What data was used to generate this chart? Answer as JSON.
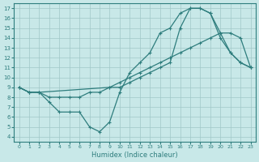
{
  "curve1_x": [
    0,
    1,
    2,
    9,
    10,
    11,
    12,
    13,
    14,
    15,
    16,
    17,
    18,
    19,
    20,
    21,
    22,
    23
  ],
  "curve1_y": [
    9,
    8.5,
    8.5,
    9,
    9.5,
    10,
    10.5,
    11,
    11.5,
    12,
    12.5,
    13,
    13.5,
    14,
    14.5,
    14.5,
    14,
    11
  ],
  "curve2_x": [
    0,
    1,
    2,
    3,
    4,
    5,
    6,
    7,
    8,
    9,
    10,
    11,
    12,
    13,
    14,
    15,
    16,
    17,
    18,
    19,
    20,
    21,
    22,
    23
  ],
  "curve2_y": [
    9,
    8.5,
    8.5,
    7.5,
    6.5,
    6.5,
    6.5,
    5.0,
    4.5,
    5.5,
    8.5,
    10.5,
    11.5,
    12.5,
    14.5,
    15.0,
    16.5,
    17.0,
    17.0,
    16.5,
    14.0,
    12.5,
    11.5,
    11.0
  ],
  "curve3_x": [
    0,
    1,
    2,
    3,
    4,
    5,
    6,
    7,
    8,
    9,
    10,
    11,
    12,
    13,
    14,
    15,
    16,
    17,
    18,
    19,
    20,
    21,
    22,
    23
  ],
  "curve3_y": [
    9,
    8.5,
    8.5,
    8.0,
    8.0,
    8.0,
    8.0,
    8.5,
    8.5,
    9.0,
    9.0,
    9.5,
    10.0,
    10.5,
    11.0,
    11.5,
    15.0,
    17.0,
    17.0,
    16.5,
    14.5,
    12.5,
    11.5,
    11.0
  ],
  "bg_color": "#c8e8e8",
  "grid_color": "#a0c8c8",
  "line_color": "#2e7d7d",
  "xlim": [
    -0.5,
    23.5
  ],
  "ylim": [
    3.5,
    17.5
  ],
  "yticks": [
    4,
    5,
    6,
    7,
    8,
    9,
    10,
    11,
    12,
    13,
    14,
    15,
    16,
    17
  ],
  "xticks": [
    0,
    1,
    2,
    3,
    4,
    5,
    6,
    7,
    8,
    9,
    10,
    11,
    12,
    13,
    14,
    15,
    16,
    17,
    18,
    19,
    20,
    21,
    22,
    23
  ],
  "xlabel": "Humidex (Indice chaleur)"
}
